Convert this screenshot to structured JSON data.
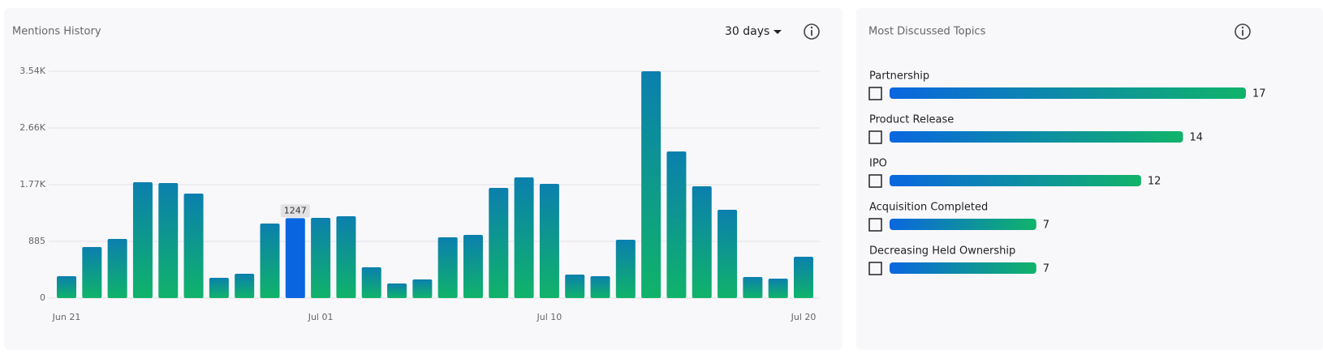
{
  "mentions": {
    "title": "Mentions History",
    "range": "30 days",
    "chart_data": {
      "type": "bar",
      "categories": [
        "Jun 21",
        null,
        null,
        null,
        null,
        null,
        null,
        null,
        null,
        null,
        "Jul 01",
        null,
        null,
        null,
        null,
        null,
        null,
        null,
        null,
        "Jul 10",
        null,
        null,
        null,
        null,
        null,
        null,
        null,
        null,
        null,
        "Jul 20"
      ],
      "values": [
        341,
        797,
        923,
        1808,
        1795,
        1631,
        316,
        379,
        1163,
        1247,
        1252,
        1277,
        480,
        228,
        291,
        948,
        986,
        1719,
        1884,
        1783,
        367,
        341,
        910,
        3540,
        2288,
        1745,
        1378,
        329,
        303,
        645
      ],
      "color": [
        "#0b7fae",
        "#10b36a"
      ],
      "highlight": 9,
      "highlight_color": "#0a66e0",
      "ylim": [
        0,
        3540
      ],
      "yticks": [
        0,
        885,
        {
          "value": 1770,
          "label": "1.77K"
        },
        {
          "value": 2655,
          "label": "2.66K"
        },
        {
          "value": 3540,
          "label": "3.54K"
        }
      ],
      "grid": true
    }
  },
  "topics": {
    "title": "Most Discussed Topics",
    "xlim": [
      0,
      17
    ],
    "color": [
      "#0a66e0",
      "#10b36a"
    ],
    "items": [
      {
        "label": "Partnership",
        "value": 17
      },
      {
        "label": "Product Release",
        "value": 14
      },
      {
        "label": "IPO",
        "value": 12
      },
      {
        "label": "Acquisition Completed",
        "value": 7
      },
      {
        "label": "Decreasing Held Ownership",
        "value": 7
      }
    ]
  }
}
